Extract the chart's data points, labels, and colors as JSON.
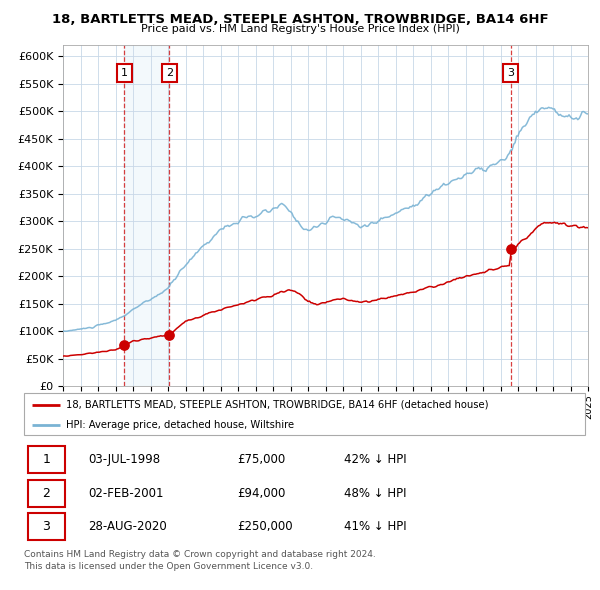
{
  "title": "18, BARTLETTS MEAD, STEEPLE ASHTON, TROWBRIDGE, BA14 6HF",
  "subtitle": "Price paid vs. HM Land Registry's House Price Index (HPI)",
  "hpi_color": "#7ab3d4",
  "price_color": "#cc0000",
  "background_color": "#ffffff",
  "grid_color": "#c8d8e8",
  "shade_color": "#d0e8f5",
  "ylim": [
    0,
    620000
  ],
  "yticks": [
    0,
    50000,
    100000,
    150000,
    200000,
    250000,
    300000,
    350000,
    400000,
    450000,
    500000,
    550000,
    600000
  ],
  "ytick_labels": [
    "£0",
    "£50K",
    "£100K",
    "£150K",
    "£200K",
    "£250K",
    "£300K",
    "£350K",
    "£400K",
    "£450K",
    "£500K",
    "£550K",
    "£600K"
  ],
  "transactions": [
    {
      "date": "1998-07-03",
      "price": 75000,
      "label": "1"
    },
    {
      "date": "2001-02-02",
      "price": 94000,
      "label": "2"
    },
    {
      "date": "2020-08-28",
      "price": 250000,
      "label": "3"
    }
  ],
  "legend_entries": [
    "18, BARTLETTS MEAD, STEEPLE ASHTON, TROWBRIDGE, BA14 6HF (detached house)",
    "HPI: Average price, detached house, Wiltshire"
  ],
  "table_data": [
    {
      "label": "1",
      "date": "03-JUL-1998",
      "price": "£75,000",
      "hpi": "42% ↓ HPI"
    },
    {
      "label": "2",
      "date": "02-FEB-2001",
      "price": "£94,000",
      "hpi": "48% ↓ HPI"
    },
    {
      "label": "3",
      "date": "28-AUG-2020",
      "price": "£250,000",
      "hpi": "41% ↓ HPI"
    }
  ],
  "footnote": "Contains HM Land Registry data © Crown copyright and database right 2024.\nThis data is licensed under the Open Government Licence v3.0.",
  "x_start_year": 1995,
  "x_end_year": 2025
}
